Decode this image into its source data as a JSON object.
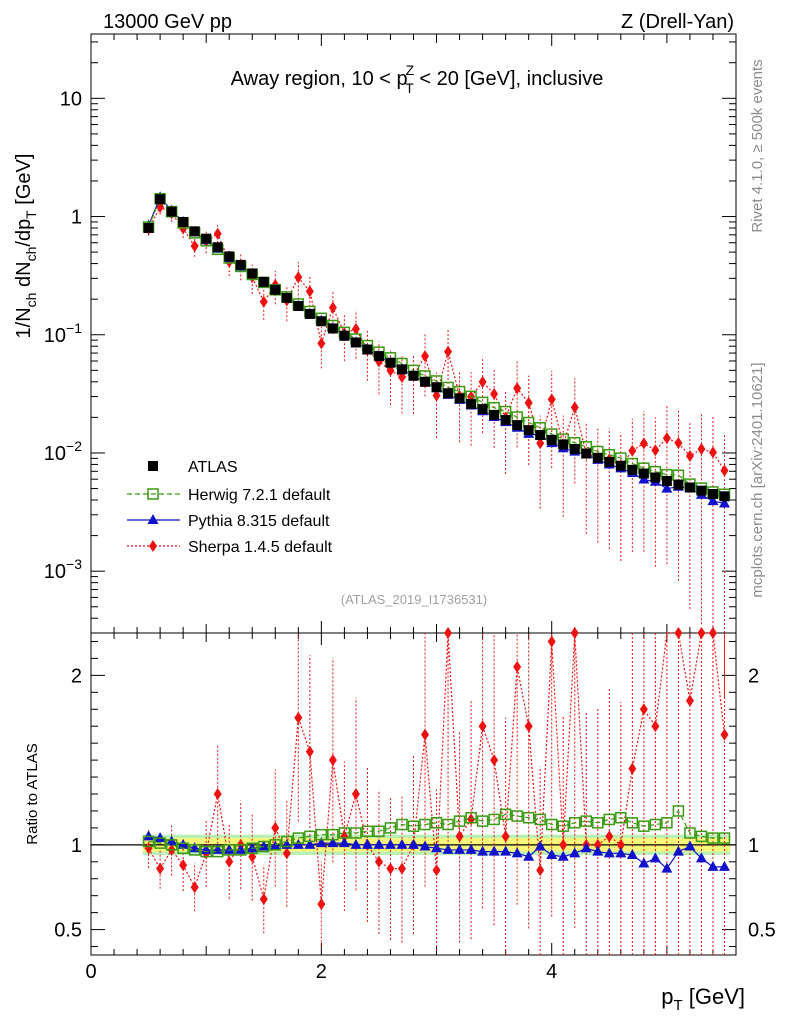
{
  "header": {
    "left": "13000 GeV pp",
    "right": "Z (Drell-Yan)"
  },
  "side_labels": {
    "rivet": "Rivet 4.1.0, ≥ 500k events",
    "mcplots": "mcplots.cern.ch [arXiv:2401.10621]"
  },
  "chart_data": {
    "type": "scatter",
    "title": "Away region, 10 < p_T^Z < 20 [GeV], inclusive",
    "title_parts": {
      "a": "Away region, 10 < p",
      "sup": "Z",
      "sub": "T",
      "b": " < 20 [GeV], inclusive"
    },
    "analysis_id": "(ATLAS_2019_I1736531)",
    "xlabel": "p_T [GeV]",
    "xlabel_parts": {
      "main": "p",
      "sub": "T",
      "unit": " [GeV]"
    },
    "ylabel": "1/N_ch dN_ch/dp_T [GeV]",
    "ylabel_parts": {
      "a": "1/N",
      "s1": "ch",
      "b": " dN",
      "s2": "ch",
      "c": "/dp",
      "s3": "T",
      "d": " [GeV]"
    },
    "ratio_ylabel": "Ratio to ATLAS",
    "xlim": [
      0,
      5.6
    ],
    "ylim_main": [
      0.0003,
      35
    ],
    "ylim_ratio": [
      0.35,
      2.25
    ],
    "log_y_main": true,
    "x_ticks": [
      0,
      2,
      4
    ],
    "x_tick_labels": [
      "0",
      "2",
      "4"
    ],
    "main_y_ticks": [
      {
        "v": 10,
        "base": "10",
        "exp": ""
      },
      {
        "v": 1,
        "base": "1",
        "exp": ""
      },
      {
        "v": 0.1,
        "base": "10",
        "exp": "−1"
      },
      {
        "v": 0.01,
        "base": "10",
        "exp": "−2"
      },
      {
        "v": 0.001,
        "base": "10",
        "exp": "−3"
      }
    ],
    "ratio_y_ticks": [
      {
        "v": 2,
        "label": "2"
      },
      {
        "v": 1,
        "label": "1"
      },
      {
        "v": 0.5,
        "label": "0.5"
      }
    ],
    "band": {
      "inner": 0.04,
      "outer": 0.06,
      "inner_color": "#f7f77c",
      "outer_color": "#b8f0b8"
    },
    "x": [
      0.5,
      0.6,
      0.7,
      0.8,
      0.9,
      1.0,
      1.1,
      1.2,
      1.3,
      1.4,
      1.5,
      1.6,
      1.7,
      1.8,
      1.9,
      2.0,
      2.1,
      2.2,
      2.3,
      2.4,
      2.5,
      2.6,
      2.7,
      2.8,
      2.9,
      3.0,
      3.1,
      3.2,
      3.3,
      3.4,
      3.5,
      3.6,
      3.7,
      3.8,
      3.9,
      4.0,
      4.1,
      4.2,
      4.3,
      4.4,
      4.5,
      4.6,
      4.7,
      4.8,
      4.9,
      5.0,
      5.1,
      5.2,
      5.3,
      5.4,
      5.5
    ],
    "atlas": [
      0.8,
      1.4,
      1.1,
      0.9,
      0.75,
      0.65,
      0.55,
      0.46,
      0.39,
      0.33,
      0.28,
      0.24,
      0.205,
      0.175,
      0.15,
      0.13,
      0.113,
      0.098,
      0.086,
      0.075,
      0.066,
      0.058,
      0.051,
      0.045,
      0.04,
      0.036,
      0.032,
      0.029,
      0.026,
      0.0235,
      0.021,
      0.019,
      0.0172,
      0.0156,
      0.0142,
      0.0129,
      0.0118,
      0.0108,
      0.0099,
      0.0091,
      0.0084,
      0.0078,
      0.0072,
      0.0067,
      0.0062,
      0.0058,
      0.0054,
      0.0051,
      0.0048,
      0.0045,
      0.0043
    ],
    "series": [
      {
        "name": "ATLAS",
        "legend": "ATLAS",
        "color": "#000000",
        "marker": "square-filled",
        "ratio": [
          1,
          1,
          1,
          1,
          1,
          1,
          1,
          1,
          1,
          1,
          1,
          1,
          1,
          1,
          1,
          1,
          1,
          1,
          1,
          1,
          1,
          1,
          1,
          1,
          1,
          1,
          1,
          1,
          1,
          1,
          1,
          1,
          1,
          1,
          1,
          1,
          1,
          1,
          1,
          1,
          1,
          1,
          1,
          1,
          1,
          1,
          1,
          1,
          1,
          1,
          1
        ]
      },
      {
        "name": "Herwig",
        "legend": "Herwig 7.2.1 default",
        "color": "#3a9a12",
        "marker": "square-open",
        "line": "dashed",
        "ratio": [
          1.02,
          1.01,
          1.0,
          0.98,
          0.97,
          0.96,
          0.96,
          0.97,
          0.97,
          0.98,
          0.99,
          1.0,
          1.02,
          1.04,
          1.05,
          1.06,
          1.06,
          1.07,
          1.07,
          1.08,
          1.08,
          1.1,
          1.12,
          1.11,
          1.12,
          1.13,
          1.12,
          1.14,
          1.16,
          1.14,
          1.15,
          1.18,
          1.17,
          1.16,
          1.15,
          1.12,
          1.11,
          1.13,
          1.14,
          1.13,
          1.15,
          1.16,
          1.13,
          1.11,
          1.12,
          1.13,
          1.2,
          1.07,
          1.05,
          1.04,
          1.04
        ]
      },
      {
        "name": "Pythia",
        "legend": "Pythia 8.315 default",
        "color": "#1212cc",
        "marker": "triangle",
        "line": "solid",
        "ratio": [
          1.05,
          1.04,
          1.02,
          1.0,
          0.98,
          0.97,
          0.97,
          0.97,
          0.97,
          0.98,
          0.99,
          0.99,
          1.0,
          1.0,
          1.0,
          1.01,
          1.01,
          1.01,
          1.0,
          1.0,
          1.0,
          1.0,
          1.0,
          1.0,
          0.99,
          0.98,
          0.97,
          0.97,
          0.97,
          0.96,
          0.96,
          0.96,
          0.95,
          0.93,
          0.99,
          0.94,
          0.93,
          0.95,
          0.98,
          0.96,
          0.95,
          0.95,
          0.94,
          0.89,
          0.92,
          0.86,
          0.96,
          0.99,
          0.92,
          0.87,
          0.87
        ]
      },
      {
        "name": "Sherpa",
        "legend": "Sherpa 1.4.5 default",
        "color": "#ee1111",
        "marker": "diamond",
        "line": "dotted",
        "ratio": [
          0.98,
          0.86,
          0.97,
          0.88,
          0.75,
          0.95,
          1.3,
          0.9,
          1.0,
          0.93,
          0.68,
          1.1,
          0.95,
          1.75,
          1.55,
          0.65,
          1.5,
          1.05,
          1.3,
          1.0,
          0.9,
          0.86,
          0.86,
          1.0,
          1.65,
          0.85,
          2.25,
          1.05,
          1.15,
          1.7,
          1.5,
          1.05,
          2.05,
          1.7,
          0.85,
          2.2,
          1.0,
          2.25,
          1.0,
          1.0,
          1.05,
          1.0,
          1.45,
          1.8,
          1.7,
          2.3,
          2.25,
          1.85,
          2.25,
          2.25,
          1.65
        ]
      }
    ]
  }
}
